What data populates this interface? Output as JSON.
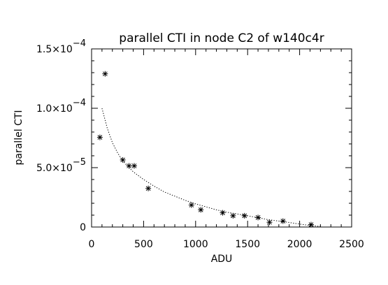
{
  "chart_data": {
    "type": "scatter",
    "title": "parallel CTI in node C2 of w140c4r",
    "xlabel": "ADU",
    "ylabel": "parallel CTI",
    "xlim": [
      0,
      2500
    ],
    "ylim": [
      0,
      0.00015
    ],
    "x_ticks": [
      0,
      500,
      1000,
      1500,
      2000,
      2500
    ],
    "x_tick_labels": [
      "0",
      "500",
      "1000",
      "1500",
      "2000",
      "2500"
    ],
    "y_ticks": [
      0,
      5e-05,
      0.0001,
      0.00015
    ],
    "y_tick_labels": [
      {
        "mant": "0",
        "exp": ""
      },
      {
        "mant": "5.0×10",
        "exp": "−5"
      },
      {
        "mant": "1.0×10",
        "exp": "−4"
      },
      {
        "mant": "1.5×10",
        "exp": "−4"
      }
    ],
    "grid": false,
    "series": [
      {
        "kind": "points",
        "marker": "asterisk",
        "x": [
          80,
          130,
          300,
          360,
          410,
          545,
          960,
          1050,
          1260,
          1360,
          1470,
          1600,
          1710,
          1840,
          2110
        ],
        "y": [
          7.55e-05,
          0.000129,
          5.65e-05,
          5.15e-05,
          5.15e-05,
          3.25e-05,
          1.85e-05,
          1.45e-05,
          1.2e-05,
          9.5e-06,
          9.5e-06,
          8e-06,
          4e-06,
          5e-06,
          2e-06
        ]
      },
      {
        "kind": "fit",
        "style": "dotted",
        "x": [
          100,
          150,
          200,
          250,
          300,
          350,
          400,
          500,
          600,
          700,
          800,
          900,
          1000,
          1100,
          1200,
          1300,
          1400,
          1500,
          1600,
          1700,
          1800,
          1900,
          2000,
          2100,
          2200
        ],
        "y": [
          0.0001,
          8.35e-05,
          7.1e-05,
          6.25e-05,
          5.55e-05,
          5.1e-05,
          4.65e-05,
          4e-05,
          3.45e-05,
          2.95e-05,
          2.6e-05,
          2.25e-05,
          1.95e-05,
          1.7e-05,
          1.45e-05,
          1.25e-05,
          1.1e-05,
          9.5e-06,
          7.8e-06,
          6.2e-06,
          5e-06,
          3.8e-06,
          2.5e-06,
          1.3e-06,
          5e-07
        ]
      }
    ]
  }
}
